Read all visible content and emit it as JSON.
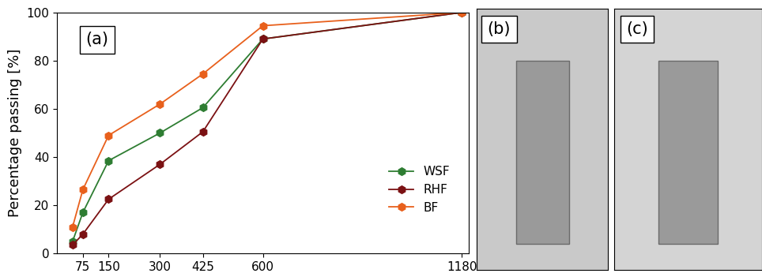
{
  "chart_data": {
    "type": "line",
    "title": "(a)",
    "y_label": "Percentage passing [%]",
    "x": [
      45,
      75,
      150,
      300,
      425,
      600,
      1180
    ],
    "series": [
      {
        "name": "WSF",
        "color": "#2e7d32",
        "marker": "hexagon",
        "line_style": "solid",
        "values": [
          5,
          17,
          38.5,
          50,
          60.5,
          89,
          100
        ]
      },
      {
        "name": "RHF",
        "color": "#7b1113",
        "marker": "hexagon",
        "line_style": "solid",
        "values": [
          3.5,
          8,
          22.5,
          37,
          50.5,
          89,
          100
        ]
      },
      {
        "name": "BF",
        "color": "#e8601c",
        "marker": "hexagon",
        "line_style": "solid",
        "values": [
          11,
          26.5,
          49,
          62,
          74.5,
          94.5,
          100
        ]
      }
    ],
    "xlim": [
      0,
      1200
    ],
    "xticks": [
      75,
      150,
      300,
      425,
      600,
      1180
    ],
    "ylim": [
      0,
      100
    ],
    "yticks": [
      0,
      20,
      40,
      60,
      80,
      100
    ],
    "grid": false,
    "legend": "lower right"
  },
  "images": [
    {
      "label": "(b)"
    },
    {
      "label": "(c)"
    }
  ]
}
